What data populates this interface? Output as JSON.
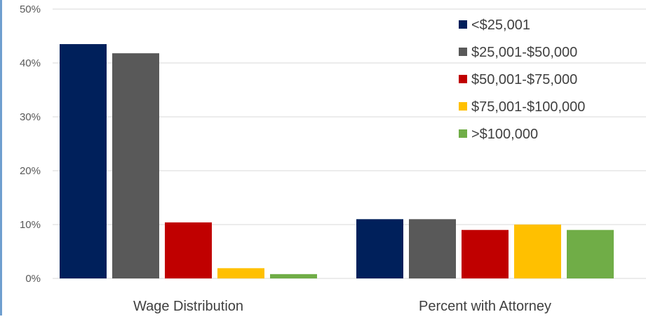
{
  "chart_data": {
    "type": "bar",
    "title": "",
    "xlabel": "",
    "ylabel": "",
    "categories": [
      "Wage Distribution",
      "Percent with Attorney"
    ],
    "series": [
      {
        "name": "<$25,001",
        "values": [
          43.5,
          11
        ],
        "color": "#00205b"
      },
      {
        "name": "$25,001-$50,000",
        "values": [
          41.8,
          11
        ],
        "color": "#595959"
      },
      {
        "name": "$50,001-$75,000",
        "values": [
          10.4,
          9
        ],
        "color": "#c00000"
      },
      {
        "name": "$75,001-$100,000",
        "values": [
          1.9,
          10
        ],
        "color": "#ffc000"
      },
      {
        "name": ">$100,000",
        "values": [
          0.8,
          9
        ],
        "color": "#70ad47"
      }
    ],
    "ylim": [
      0,
      50
    ],
    "yticks": [
      0,
      10,
      20,
      30,
      40,
      50
    ],
    "ytick_labels": [
      "0%",
      "10%",
      "20%",
      "30%",
      "40%",
      "50%"
    ],
    "grid": true,
    "legend_position": "top-right"
  }
}
